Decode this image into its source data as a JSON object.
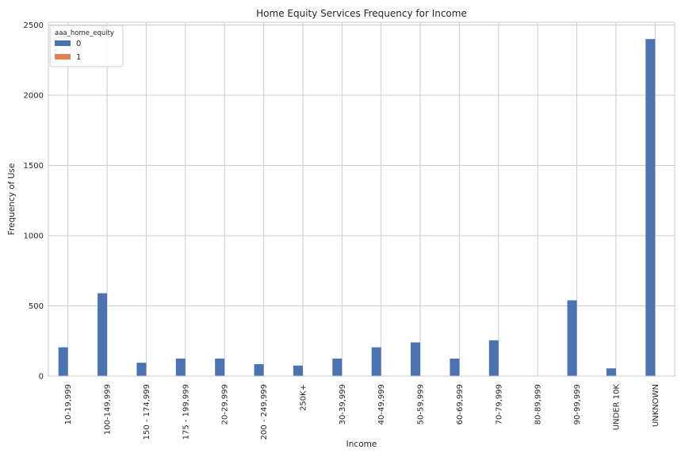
{
  "chart_data": {
    "type": "bar",
    "title": "Home Equity Services Frequency for Income",
    "xlabel": "Income",
    "ylabel": "Frequency of Use",
    "categories": [
      "10-19,999",
      "100-149,999",
      "150 - 174,999",
      "175 - 199,999",
      "20-29,999",
      "200 - 249,999",
      "250K+",
      "30-39,999",
      "40-49,999",
      "50-59,999",
      "60-69,999",
      "70-79,999",
      "80-89,999",
      "90-99,999",
      "UNDER 10K",
      "UNKNOWN"
    ],
    "series": [
      {
        "name": "0",
        "color": "#4c72b0",
        "values": [
          205,
          590,
          95,
          125,
          125,
          85,
          75,
          125,
          205,
          240,
          125,
          255,
          0,
          540,
          55,
          2400
        ]
      },
      {
        "name": "1",
        "color": "#dd8452",
        "values": [
          0,
          0,
          0,
          0,
          0,
          0,
          0,
          0,
          0,
          0,
          0,
          0,
          0,
          0,
          0,
          0
        ]
      }
    ],
    "ylim": [
      0,
      2520
    ],
    "yticks": [
      0,
      500,
      1000,
      1500,
      2000,
      2500
    ],
    "grid": true,
    "legend": {
      "title": "aaa_home_equity",
      "placement": "top-left"
    }
  }
}
